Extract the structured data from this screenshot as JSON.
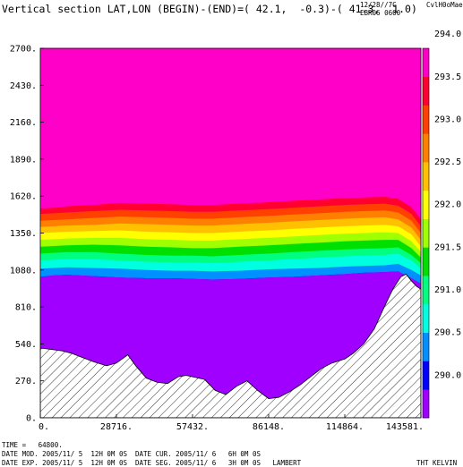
{
  "header": {
    "title": "Vertical section LAT,LON (BEGIN)-(END)=( 42.1,  -0.3)-( 41.3,  1.0)",
    "stamp_line1": "12/28//7C",
    "stamp_line2": "EBR06 0600",
    "stamp_right": "CvlH0oMae"
  },
  "footer": {
    "time_line": "TIME =   64800.",
    "line2": "DATE MOD. 2005/11/ 5  12H 0M 0S  DATE CUR. 2005/11/ 6   6H 0M 0S",
    "line3": "DATE EXP. 2005/11/ 5  12H 0M 0S  DATE SEG. 2005/11/ 6   3H 0M 0S   LAMBERT",
    "units_label": "THT KELVIN"
  },
  "chart_data": {
    "type": "heatmap",
    "title": "Vertical section LAT,LON (BEGIN)-(END)=( 42.1,  -0.3)-( 41.3,  1.0)",
    "xlabel": "",
    "ylabel": "",
    "xlim": [
      0,
      143581
    ],
    "ylim": [
      0,
      2700
    ],
    "x_ticks": [
      "0.",
      "28716.",
      "57432.",
      "86148.",
      "114864.",
      "143581."
    ],
    "x_tick_values": [
      0,
      28716,
      57432,
      86148,
      114864,
      143581
    ],
    "y_ticks": [
      "0.",
      "270.",
      "540.",
      "810.",
      "1080.",
      "1350.",
      "1620.",
      "1890.",
      "2160.",
      "2430.",
      "2700."
    ],
    "y_tick_values": [
      0,
      270,
      540,
      810,
      1080,
      1350,
      1620,
      1890,
      2160,
      2430,
      2700
    ],
    "colorbar": {
      "labels": [
        "290.0",
        "290.5",
        "291.0",
        "291.5",
        "292.0",
        "292.5",
        "293.0",
        "293.5",
        "294.0"
      ],
      "level_values": [
        290.0,
        290.5,
        291.0,
        291.5,
        292.0,
        292.5,
        293.0,
        293.5,
        294.0
      ],
      "band_colors": [
        "#a000ff",
        "#0000ff",
        "#0090ff",
        "#00ffe0",
        "#00ff80",
        "#00e000",
        "#a0ff00",
        "#ffff00",
        "#ffc000",
        "#ff8000",
        "#ff4000",
        "#ff0030",
        "#ff00c8"
      ]
    },
    "band_boundaries": {
      "x": [
        0,
        5000,
        10000,
        20000,
        30000,
        40000,
        50000,
        57432,
        65000,
        75000,
        86148,
        95000,
        105000,
        114864,
        122000,
        130000,
        135000,
        140000,
        143581
      ],
      "levels": [
        [
          1030,
          1040,
          1045,
          1035,
          1025,
          1020,
          1020,
          1015,
          1010,
          1015,
          1025,
          1030,
          1040,
          1050,
          1060,
          1065,
          1070,
          1020,
          980
        ],
        [
          1090,
          1095,
          1100,
          1095,
          1090,
          1080,
          1075,
          1075,
          1070,
          1075,
          1085,
          1090,
          1095,
          1105,
          1110,
          1115,
          1125,
          1080,
          1040
        ],
        [
          1150,
          1155,
          1160,
          1160,
          1150,
          1140,
          1135,
          1135,
          1130,
          1140,
          1150,
          1160,
          1170,
          1180,
          1185,
          1190,
          1200,
          1150,
          1090
        ],
        [
          1200,
          1205,
          1210,
          1210,
          1200,
          1190,
          1185,
          1185,
          1180,
          1190,
          1200,
          1210,
          1220,
          1230,
          1235,
          1240,
          1245,
          1190,
          1130
        ],
        [
          1250,
          1255,
          1260,
          1265,
          1260,
          1250,
          1245,
          1240,
          1240,
          1250,
          1260,
          1270,
          1280,
          1290,
          1295,
          1300,
          1300,
          1240,
          1170
        ],
        [
          1300,
          1305,
          1310,
          1315,
          1315,
          1305,
          1300,
          1295,
          1295,
          1305,
          1315,
          1325,
          1335,
          1345,
          1350,
          1355,
          1350,
          1290,
          1210
        ],
        [
          1350,
          1355,
          1360,
          1365,
          1370,
          1360,
          1355,
          1350,
          1350,
          1360,
          1370,
          1380,
          1390,
          1400,
          1405,
          1410,
          1400,
          1340,
          1250
        ],
        [
          1395,
          1400,
          1405,
          1410,
          1420,
          1415,
          1410,
          1405,
          1405,
          1415,
          1425,
          1435,
          1445,
          1455,
          1460,
          1465,
          1450,
          1390,
          1300
        ],
        [
          1440,
          1445,
          1450,
          1460,
          1470,
          1465,
          1460,
          1455,
          1455,
          1465,
          1475,
          1485,
          1495,
          1505,
          1510,
          1515,
          1500,
          1440,
          1350
        ],
        [
          1490,
          1495,
          1500,
          1510,
          1520,
          1515,
          1510,
          1505,
          1505,
          1515,
          1525,
          1535,
          1545,
          1555,
          1560,
          1565,
          1550,
          1490,
          1400
        ],
        [
          1530,
          1535,
          1545,
          1555,
          1570,
          1565,
          1560,
          1555,
          1555,
          1565,
          1575,
          1585,
          1595,
          1605,
          1610,
          1615,
          1600,
          1540,
          1450
        ],
        [
          1575,
          1580,
          1590,
          1600,
          1620,
          1615,
          1610,
          1605,
          1605,
          1615,
          1625,
          1635,
          1645,
          1655,
          1660,
          1665,
          1650,
          1590,
          1510
        ]
      ]
    },
    "terrain": {
      "x": [
        0,
        4000,
        8000,
        12000,
        16000,
        20000,
        25000,
        28716,
        33000,
        36000,
        40000,
        44000,
        48000,
        52000,
        55000,
        57432,
        62000,
        66000,
        70000,
        74000,
        78000,
        82000,
        86148,
        90000,
        94000,
        98000,
        102000,
        106000,
        110000,
        114864,
        118000,
        122000,
        126000,
        130000,
        133000,
        136000,
        138000,
        140000,
        142000,
        143581
      ],
      "z": [
        510,
        500,
        490,
        470,
        440,
        410,
        380,
        400,
        460,
        380,
        290,
        260,
        250,
        300,
        310,
        300,
        280,
        200,
        170,
        230,
        270,
        200,
        140,
        150,
        190,
        240,
        300,
        360,
        400,
        430,
        470,
        540,
        650,
        820,
        940,
        1030,
        1050,
        1000,
        960,
        940
      ]
    }
  }
}
